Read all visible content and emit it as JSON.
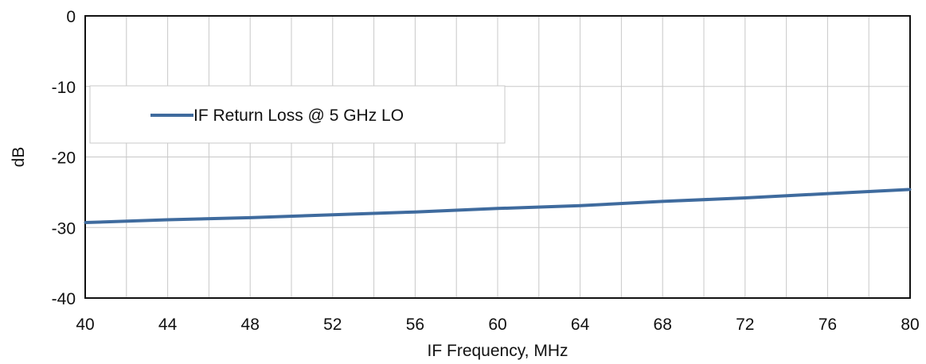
{
  "chart_data": {
    "type": "line",
    "title": "",
    "xlabel": "IF Frequency,  MHz",
    "ylabel": "dB",
    "xlim": [
      40,
      80
    ],
    "ylim": [
      -40,
      0
    ],
    "x_ticks": [
      40,
      44,
      48,
      52,
      56,
      60,
      64,
      68,
      72,
      76,
      80
    ],
    "y_ticks": [
      0,
      -10,
      -20,
      -30,
      -40
    ],
    "x_grid_step": 2,
    "grid": true,
    "legend_position": "upper-left",
    "series": [
      {
        "name": "IF Return Loss @ 5 GHz LO",
        "color": "#3f6b9e",
        "x": [
          40,
          44,
          48,
          52,
          56,
          60,
          64,
          68,
          72,
          76,
          80
        ],
        "y": [
          -29.3,
          -28.9,
          -28.6,
          -28.2,
          -27.8,
          -27.3,
          -26.9,
          -26.3,
          -25.8,
          -25.2,
          -24.6
        ]
      }
    ]
  }
}
